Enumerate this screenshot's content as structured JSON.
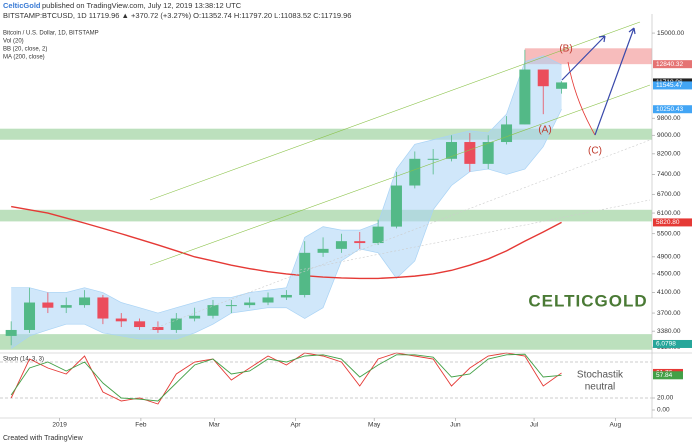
{
  "header": {
    "author": "CelticGold",
    "published": "published on TradingView.com, July 12, 2019 13:38:12 UTC",
    "symbol_line": "BITSTAMP:BTCUSD, 1D  11719.96  ▲ +370.72 (+3.27%)  O:11352.74  H:11797.20  L:11083.52  C:11719.96"
  },
  "legend": [
    "Bitcoin / U.S. Dollar, 1D, BITSTAMP",
    "Vol (20)",
    "BB (20, close, 2)",
    "MA (200, close)"
  ],
  "footer": "Created with TradingView",
  "logo": "CELTICGOLD",
  "chart_data": {
    "type": "candlestick",
    "log_scale": true,
    "x": [
      3.5,
      10.5,
      17.5,
      24.5,
      31.5,
      38.5,
      45.5,
      52.5,
      59.5,
      66.5,
      73.5,
      80.5,
      87.5,
      94.5,
      101.5,
      108.5,
      115.5,
      122.5,
      129.5,
      136.5,
      143.5,
      150.5,
      157.5,
      164.5,
      171.5,
      178.5,
      185.5,
      192.5,
      199.5,
      206.5,
      213.5
    ],
    "open": [
      3300,
      3400,
      3900,
      3800,
      3850,
      4000,
      3600,
      3550,
      3450,
      3400,
      3600,
      3650,
      3850,
      3850,
      3900,
      4000,
      4050,
      5000,
      5100,
      5300,
      5250,
      5700,
      7000,
      8000,
      8000,
      8700,
      7800,
      8700,
      9500,
      12500,
      11352.74
    ],
    "high": [
      3550,
      4200,
      4100,
      4000,
      4150,
      4050,
      3700,
      3600,
      3550,
      3700,
      3800,
      3950,
      3950,
      4000,
      4100,
      4150,
      5300,
      5400,
      5500,
      5550,
      5900,
      7500,
      8300,
      8400,
      9000,
      9100,
      9000,
      9900,
      13800,
      12400,
      11797.2
    ],
    "low": [
      3150,
      3350,
      3700,
      3700,
      3800,
      3500,
      3450,
      3400,
      3350,
      3350,
      3550,
      3600,
      3700,
      3800,
      3850,
      3950,
      4000,
      4900,
      5000,
      5100,
      5200,
      5650,
      6900,
      7400,
      7900,
      7500,
      7600,
      8600,
      9500,
      10000,
      11083.52
    ],
    "close": [
      3400,
      3900,
      3800,
      3850,
      4000,
      3600,
      3550,
      3450,
      3400,
      3600,
      3650,
      3850,
      3850,
      3900,
      4000,
      4050,
      5000,
      5100,
      5300,
      5250,
      5700,
      7000,
      8000,
      8000,
      8700,
      7800,
      8700,
      9500,
      12500,
      11500,
      11719.96
    ],
    "up_color": "#53b987",
    "down_color": "#eb4d5c",
    "ma": {
      "color": "#e53935",
      "values": [
        6300,
        6200,
        6100,
        5950,
        5800,
        5650,
        5500,
        5350,
        5200,
        5050,
        4900,
        4800,
        4700,
        4620,
        4550,
        4500,
        4460,
        4430,
        4410,
        4400,
        4400,
        4420,
        4450,
        4500,
        4580,
        4700,
        4850,
        5050,
        5300,
        5550,
        5820.8
      ]
    },
    "bb": {
      "color": "#a9d3f5",
      "upper": [
        4200,
        4200,
        4100,
        4100,
        4200,
        4100,
        3900,
        3800,
        3700,
        3800,
        3900,
        4000,
        4000,
        4100,
        4150,
        4200,
        5400,
        5700,
        5600,
        5600,
        5800,
        7600,
        8600,
        8800,
        9000,
        9200,
        9100,
        10000,
        13000,
        13400,
        12800
      ],
      "lower": [
        3100,
        3300,
        3400,
        3500,
        3500,
        3350,
        3300,
        3250,
        3250,
        3250,
        3350,
        3500,
        3700,
        3750,
        3800,
        3800,
        3600,
        3800,
        4800,
        5100,
        5000,
        4400,
        4800,
        6200,
        7000,
        7500,
        7600,
        7400,
        7600,
        8500,
        10250.43
      ]
    },
    "zones": [
      {
        "from": 8800,
        "to": 9300,
        "color": "#a5d6a7"
      },
      {
        "from": 5850,
        "to": 6200,
        "color": "#a5d6a7"
      },
      {
        "from": 3080,
        "to": 3330,
        "color": "#a5d6a7"
      },
      {
        "from": 12840.32,
        "to": 13900,
        "color": "#f4a6a6",
        "x0": 199.5
      }
    ],
    "xlim": [
      0,
      248
    ],
    "ylim": [
      3000,
      16500
    ],
    "xticks": [
      {
        "value": 22,
        "label": "2019"
      },
      {
        "value": 53,
        "label": "Feb"
      },
      {
        "value": 81,
        "label": "Mar"
      },
      {
        "value": 112,
        "label": "Apr"
      },
      {
        "value": 142,
        "label": "May"
      },
      {
        "value": 173,
        "label": "Jun"
      },
      {
        "value": 203,
        "label": "Jul"
      },
      {
        "value": 234,
        "label": "Aug"
      }
    ],
    "yticks": [
      {
        "value": 15000,
        "label": "15000.00"
      },
      {
        "value": 9800,
        "label": "9800.00"
      },
      {
        "value": 9000,
        "label": "9000.00"
      },
      {
        "value": 8200,
        "label": "8200.00"
      },
      {
        "value": 7400,
        "label": "7400.00"
      },
      {
        "value": 6700,
        "label": "6700.00"
      },
      {
        "value": 6100,
        "label": "6100.00"
      },
      {
        "value": 5500,
        "label": "5500.00"
      },
      {
        "value": 4900,
        "label": "4900.00"
      },
      {
        "value": 4500,
        "label": "4500.00"
      },
      {
        "value": 4100,
        "label": "4100.00"
      },
      {
        "value": 3700,
        "label": "3700.00"
      },
      {
        "value": 3380,
        "label": "3380.00"
      },
      {
        "value": 3120,
        "label": "3120.00"
      }
    ],
    "price_markers": [
      {
        "value": 12840.32,
        "color": "#e57373"
      },
      {
        "value": 11719.96,
        "color": "#222"
      },
      {
        "value": 11545.47,
        "color": "#42a5f5"
      },
      {
        "value": 10250.43,
        "color": "#42a5f5"
      },
      {
        "value": 5820.8,
        "label": "5820.80",
        "color": "#e53935"
      },
      {
        "value": 3170,
        "label": "6.0798",
        "color": "#26a69a"
      }
    ],
    "annotations": [
      "(A)",
      "(B)",
      "(C)",
      "Stochastik",
      "neutral"
    ],
    "stoch": {
      "title": "Stoch (14, 3, 3)",
      "ylim": [
        0,
        100
      ],
      "bands": [
        80,
        20
      ],
      "yticks": [
        {
          "value": 20,
          "label": "20.00"
        },
        {
          "value": 0,
          "label": "0.00"
        }
      ],
      "series": [
        {
          "color": "#e53935",
          "values": [
            20,
            85,
            70,
            60,
            90,
            30,
            15,
            20,
            10,
            60,
            80,
            85,
            50,
            70,
            90,
            75,
            95,
            90,
            80,
            40,
            85,
            95,
            90,
            85,
            40,
            70,
            90,
            95,
            90,
            40,
            61.76
          ]
        },
        {
          "color": "#43a047",
          "values": [
            25,
            70,
            80,
            65,
            80,
            45,
            20,
            18,
            15,
            45,
            75,
            85,
            60,
            65,
            85,
            80,
            90,
            92,
            85,
            55,
            75,
            92,
            92,
            88,
            55,
            60,
            85,
            92,
            93,
            55,
            57.84
          ]
        }
      ]
    }
  }
}
